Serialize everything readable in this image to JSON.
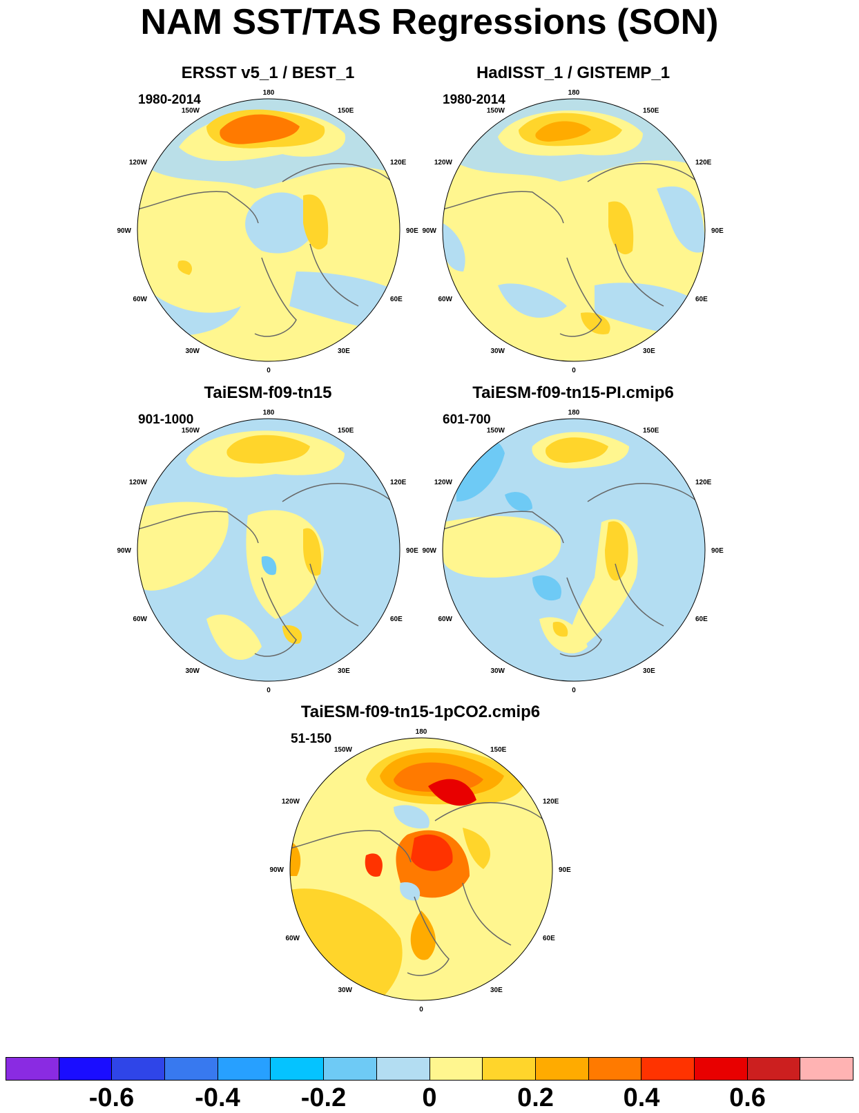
{
  "title": "NAM SST/TAS Regressions (SON)",
  "panels": [
    {
      "title": "ERSST v5_1 / BEST_1",
      "period": "1980-2014"
    },
    {
      "title": "HadISST_1 / GISTEMP_1",
      "period": "1980-2014"
    },
    {
      "title": "TaiESM-f09-tn15",
      "period": "901-1000"
    },
    {
      "title": "TaiESM-f09-tn15-PI.cmip6",
      "period": "601-700"
    },
    {
      "title": "TaiESM-f09-tn15-1pCO2.cmip6",
      "period": "51-150"
    }
  ],
  "longitude_labels": [
    "180",
    "150E",
    "120E",
    "90E",
    "60E",
    "30E",
    "0",
    "30W",
    "60W",
    "90W",
    "120W",
    "150W"
  ],
  "colorbar": {
    "colors": [
      "#8a2be2",
      "#1a0dff",
      "#2f45e8",
      "#3879ef",
      "#27a0ff",
      "#05c3ff",
      "#6ecaf5",
      "#b3ddf2",
      "#fff68f",
      "#ffd52b",
      "#ffab00",
      "#ff7a00",
      "#ff3300",
      "#e80000",
      "#cc1f1f",
      "#ffb3b3"
    ],
    "labels": [
      "-0.6",
      "-0.4",
      "-0.2",
      "0",
      "0.2",
      "0.4",
      "0.6"
    ]
  },
  "palette": {
    "light_blue": "#b3ddf2",
    "blue": "#6ecaf5",
    "yellow": "#fff68f",
    "gold": "#ffd52b",
    "orange": "#ffab00",
    "dark_orange": "#ff7a00",
    "red_orange": "#ff3300",
    "red": "#e80000",
    "coast": "#666666"
  }
}
